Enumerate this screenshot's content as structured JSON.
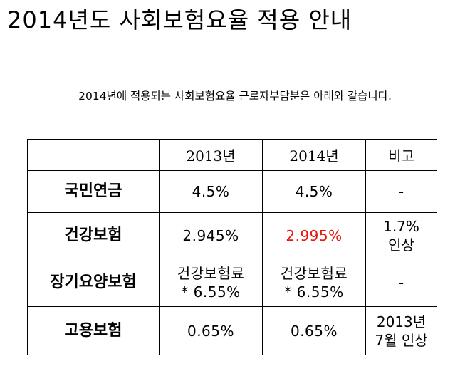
{
  "title": "2014년도 사회보험요율 적용 안내",
  "subtitle": "2014년에 적용되는 사회보험요율 근로자부담분은 아래와 같습니다.",
  "table": {
    "headers": [
      "",
      "2013년",
      "2014년",
      "비고"
    ],
    "rows": [
      {
        "name": "국민연금",
        "y2013": [
          "4.5%"
        ],
        "y2014": [
          "4.5%"
        ],
        "note": [
          "-"
        ]
      },
      {
        "name": "건강보험",
        "y2013": [
          "2.945%"
        ],
        "y2014": [
          "2.995%"
        ],
        "note": [
          "1.7%",
          "인상"
        ]
      },
      {
        "name": "장기요양보험",
        "y2013": [
          "건강보험료",
          "* 6.55%"
        ],
        "y2014": [
          "건강보험료",
          "* 6.55%"
        ],
        "note": [
          "-"
        ]
      },
      {
        "name": "고용보험",
        "y2013": [
          "0.65%"
        ],
        "y2014": [
          "0.65%"
        ],
        "note": [
          "2013년",
          "7월 인상"
        ]
      }
    ]
  },
  "colors": {
    "text": "#000000",
    "highlight": "#e8160c",
    "border": "#000000",
    "background": "#ffffff"
  }
}
